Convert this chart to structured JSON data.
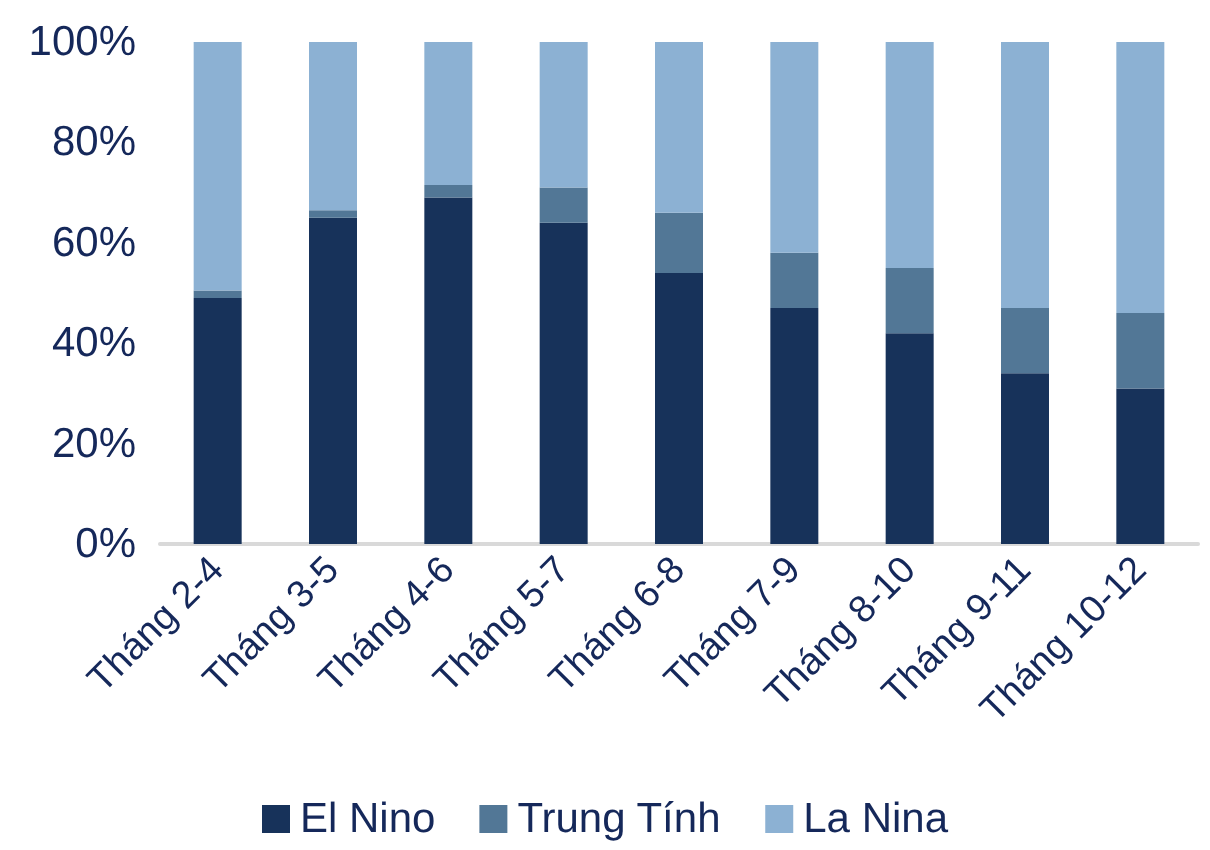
{
  "chart_data": {
    "type": "bar",
    "stacked": true,
    "categories": [
      "Tháng 2-4",
      "Tháng 3-5",
      "Tháng 4-6",
      "Tháng 5-7",
      "Tháng 6-8",
      "Tháng 7-9",
      "Tháng 8-10",
      "Tháng 9-11",
      "Tháng 10-12"
    ],
    "series": [
      {
        "name": "El Nino",
        "color": "#17325a",
        "values": [
          49,
          65,
          69,
          64,
          54,
          47,
          42,
          34,
          31
        ]
      },
      {
        "name": "Trung Tính",
        "color": "#527796",
        "values": [
          1.5,
          1.5,
          2.5,
          7,
          12,
          11,
          13,
          13,
          15
        ]
      },
      {
        "name": "La Nina",
        "color": "#8cb1d3",
        "values": [
          49.5,
          33.5,
          28.5,
          29,
          34,
          42,
          45,
          53,
          54
        ]
      }
    ],
    "ylim": [
      0,
      100
    ],
    "yticks": [
      {
        "value": 0,
        "label": "0%"
      },
      {
        "value": 20,
        "label": "20%"
      },
      {
        "value": 40,
        "label": "40%"
      },
      {
        "value": 60,
        "label": "60%"
      },
      {
        "value": 80,
        "label": "80%"
      },
      {
        "value": 100,
        "label": "100%"
      }
    ],
    "grid": false,
    "legend": "bottom"
  }
}
